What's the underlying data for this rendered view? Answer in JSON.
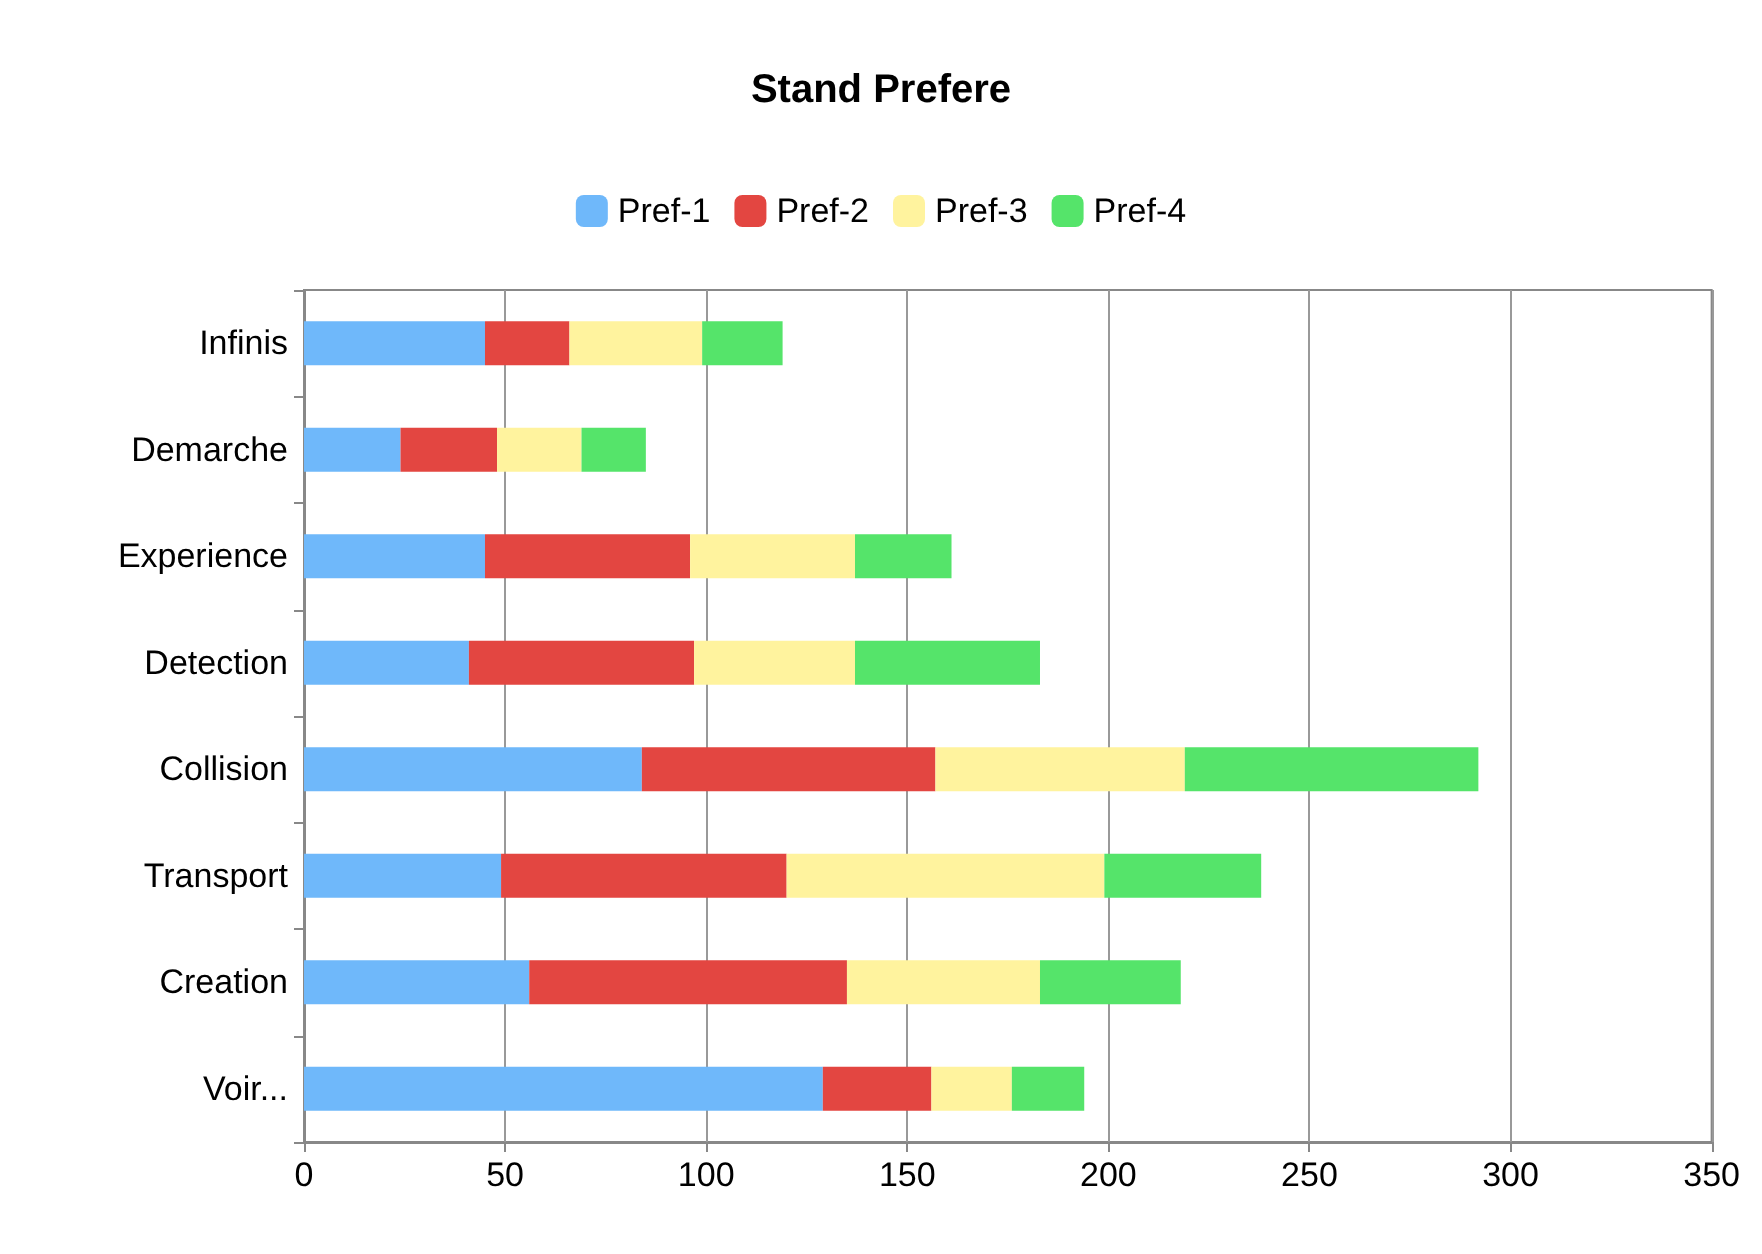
{
  "chart_data": {
    "type": "bar",
    "orientation": "horizontal",
    "stacked": true,
    "title": "Stand Prefere",
    "categories": [
      "Infinis",
      "Demarche",
      "Experience",
      "Detection",
      "Collision",
      "Transport",
      "Creation",
      "Voir..."
    ],
    "series": [
      {
        "name": "Pref-1",
        "color": "#6fb8fa",
        "values": [
          45,
          24,
          45,
          41,
          84,
          49,
          56,
          129
        ]
      },
      {
        "name": "Pref-2",
        "color": "#e34641",
        "values": [
          21,
          24,
          51,
          56,
          73,
          71,
          79,
          27
        ]
      },
      {
        "name": "Pref-3",
        "color": "#fff39e",
        "values": [
          33,
          21,
          41,
          40,
          62,
          79,
          48,
          20
        ]
      },
      {
        "name": "Pref-4",
        "color": "#55e46a",
        "values": [
          20,
          16,
          24,
          46,
          73,
          39,
          35,
          18
        ]
      }
    ],
    "xlim": [
      0,
      350
    ],
    "xticks": [
      0,
      50,
      100,
      150,
      200,
      250,
      300,
      350
    ],
    "grid": "x",
    "legend": "top"
  }
}
